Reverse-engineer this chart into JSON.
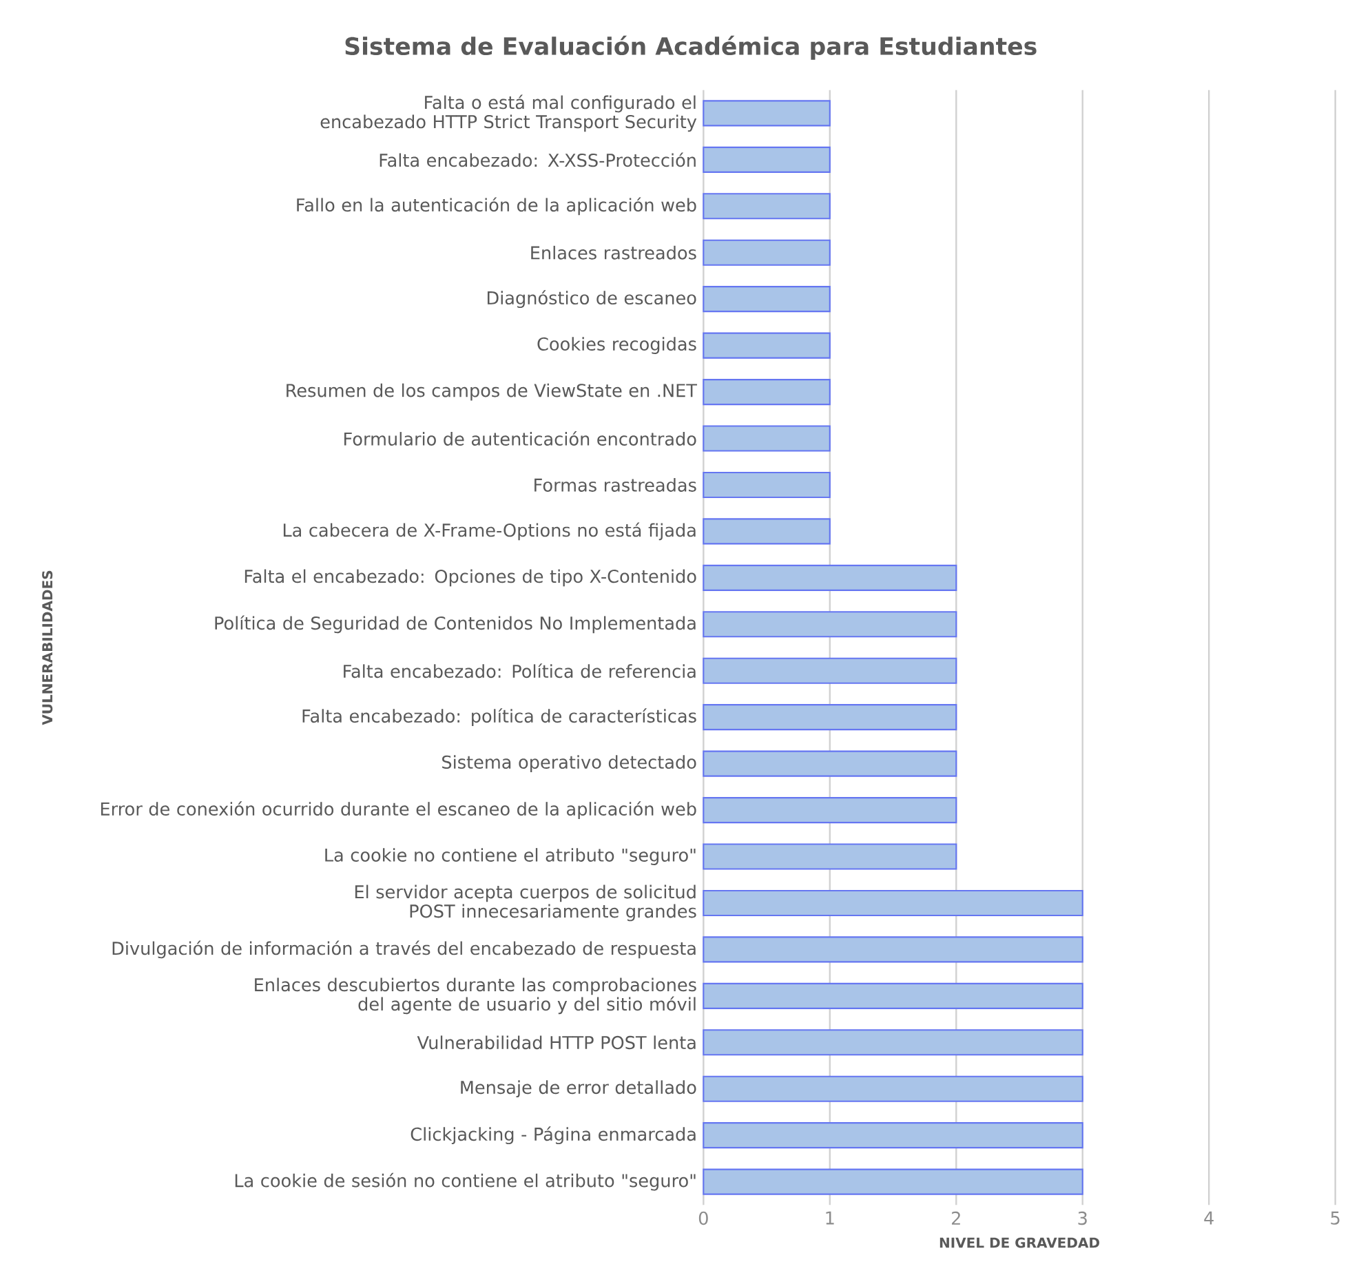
{
  "chart_data": {
    "type": "bar",
    "orientation": "horizontal",
    "title": "Sistema de Evaluación Académica para Estudiantes",
    "xlabel": "NIVEL DE GRAVEDAD",
    "ylabel": "VULNERABILIDADES",
    "categories": [
      "Falta o está mal configurado el encabezado HTTP Strict Transport Security",
      "Falta encabezado: X-XSS-Protección",
      "Fallo en la autenticación de la aplicación web",
      "Enlaces rastreados",
      "Diagnóstico de escaneo",
      "Cookies recogidas",
      "Resumen de los campos de ViewState en .NET",
      "Formulario de autenticación encontrado",
      "Formas rastreadas",
      "La cabecera de X-Frame-Options no está fijada",
      "Falta el encabezado: Opciones de tipo X-Contenido",
      "Política de Seguridad de Contenidos No Implementada",
      "Falta encabezado: Política de referencia",
      "Falta encabezado: política de características",
      "Sistema operativo detectado",
      "Error de conexión ocurrido durante el escaneo de la aplicación web",
      "La cookie no contiene el atributo \"seguro\"",
      "El servidor acepta cuerpos de solicitud POST innecesariamente grandes",
      "Divulgación de información a través del encabezado de respuesta",
      "Enlaces descubiertos durante las comprobaciones del agente de usuario y del sitio móvil",
      "Vulnerabilidad HTTP POST lenta",
      "Mensaje de error detallado",
      "Clickjacking - Página enmarcada",
      "La cookie de sesión no contiene el atributo \"seguro\""
    ],
    "values": [
      1,
      1,
      1,
      1,
      1,
      1,
      1,
      1,
      1,
      1,
      2,
      2,
      2,
      2,
      2,
      2,
      2,
      3,
      3,
      3,
      3,
      3,
      3,
      3
    ],
    "color": "#a9c4e8",
    "xlim": [
      0,
      5
    ],
    "xticks": [
      0,
      1,
      2,
      3,
      4,
      5
    ],
    "grid": "x"
  }
}
